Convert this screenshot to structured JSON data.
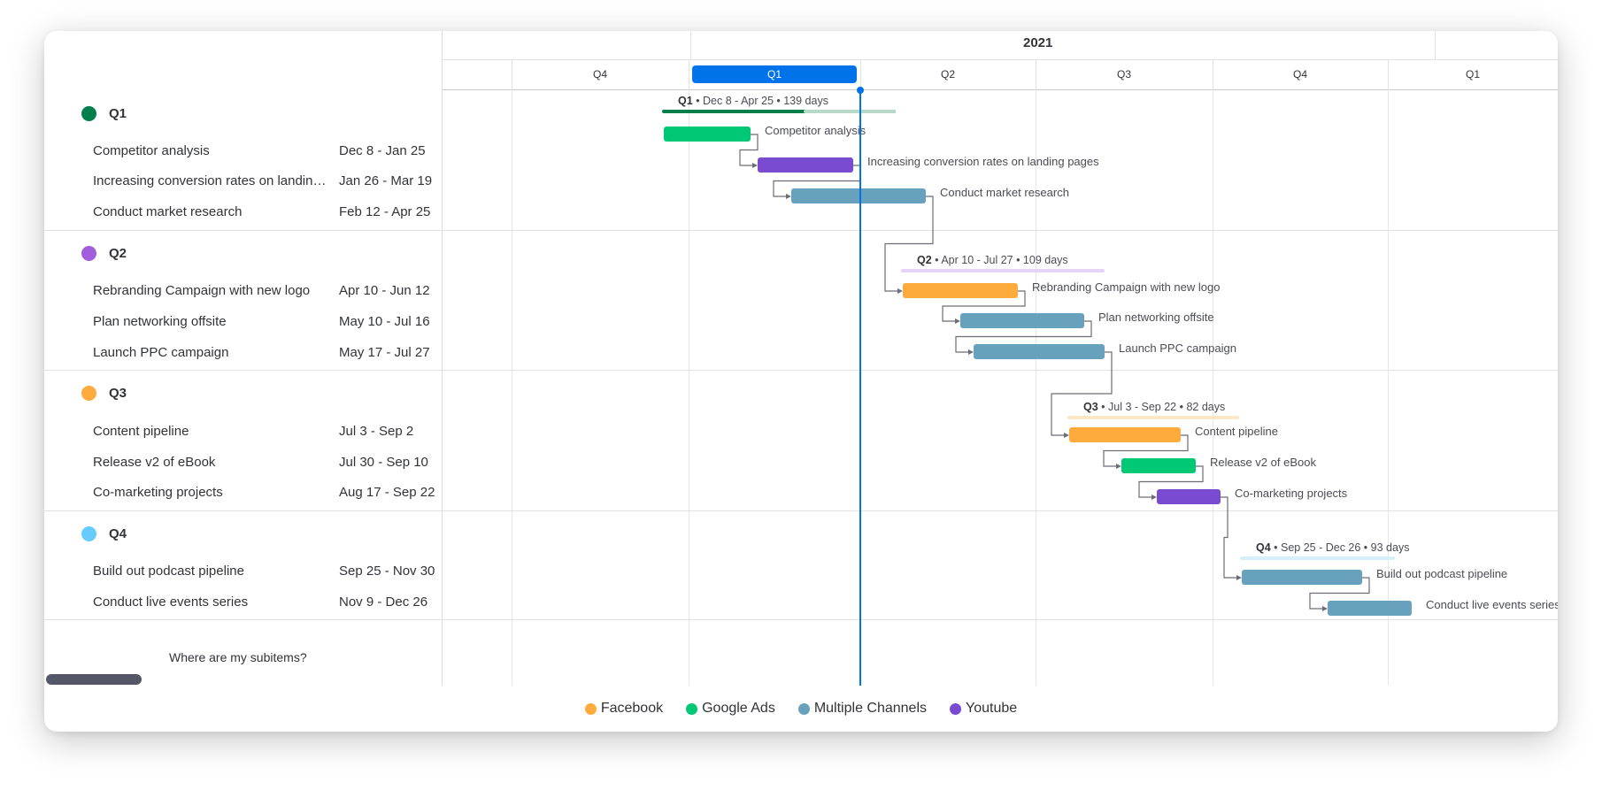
{
  "timeline": {
    "year": "2021",
    "quarters": [
      {
        "label": "Q4",
        "active": false
      },
      {
        "label": "Q1",
        "active": true
      },
      {
        "label": "Q2",
        "active": false
      },
      {
        "label": "Q3",
        "active": false
      },
      {
        "label": "Q4",
        "active": false
      },
      {
        "label": "Q1",
        "active": false
      }
    ],
    "accent_color": "#0073ea"
  },
  "groups": [
    {
      "name": "Q1",
      "color": "#037f4c",
      "summary_color": "#037f4c",
      "summary": {
        "name": "Q1",
        "detail": "• Dec 8 - Apr 25 • 139 days"
      },
      "items": [
        {
          "name": "Competitor analysis",
          "dates": "Dec 8 - Jan 25",
          "color": "#00c875"
        },
        {
          "name": "Increasing conversion rates on landing pages",
          "dates": "Jan 26 - Mar 19",
          "color": "#784bd1"
        },
        {
          "name": "Conduct market research",
          "dates": "Feb 12 - Apr 25",
          "color": "#68a1bd"
        }
      ]
    },
    {
      "name": "Q2",
      "color": "#a25ddc",
      "summary_color": "#e5d4f7",
      "summary": {
        "name": "Q2",
        "detail": "• Apr 10 - Jul 27 • 109 days"
      },
      "items": [
        {
          "name": "Rebranding Campaign with new logo",
          "dates": "Apr 10 - Jun 12",
          "color": "#fdab3d"
        },
        {
          "name": "Plan networking offsite",
          "dates": "May 10 - Jul 16",
          "color": "#68a1bd"
        },
        {
          "name": "Launch PPC campaign",
          "dates": "May 17 - Jul 27",
          "color": "#68a1bd"
        }
      ]
    },
    {
      "name": "Q3",
      "color": "#fdab3d",
      "summary_color": "#fde7c5",
      "summary": {
        "name": "Q3",
        "detail": "• Jul 3 - Sep 22 • 82 days"
      },
      "items": [
        {
          "name": "Content pipeline",
          "dates": "Jul 3 - Sep 2",
          "color": "#fdab3d"
        },
        {
          "name": "Release v2 of eBook",
          "dates": "Jul 30 - Sep 10",
          "color": "#00c875"
        },
        {
          "name": "Co-marketing projects",
          "dates": "Aug 17 - Sep 22",
          "color": "#784bd1"
        }
      ]
    },
    {
      "name": "Q4",
      "color": "#66ccff",
      "summary_color": "#d6f0fb",
      "summary": {
        "name": "Q4",
        "detail": "• Sep 25 - Dec 26 • 93 days"
      },
      "items": [
        {
          "name": "Build out podcast pipeline",
          "dates": "Sep 25 - Nov 30",
          "color": "#68a1bd"
        },
        {
          "name": "Conduct live events series",
          "dates": "Nov 9 - Dec 26",
          "color": "#68a1bd"
        }
      ]
    }
  ],
  "footer": {
    "subitems_link": "Where are my subitems?"
  },
  "legend": [
    {
      "label": "Facebook",
      "color": "#fdab3d"
    },
    {
      "label": "Google Ads",
      "color": "#00c875"
    },
    {
      "label": "Multiple Channels",
      "color": "#68a1bd"
    },
    {
      "label": "Youtube",
      "color": "#784bd1"
    }
  ]
}
